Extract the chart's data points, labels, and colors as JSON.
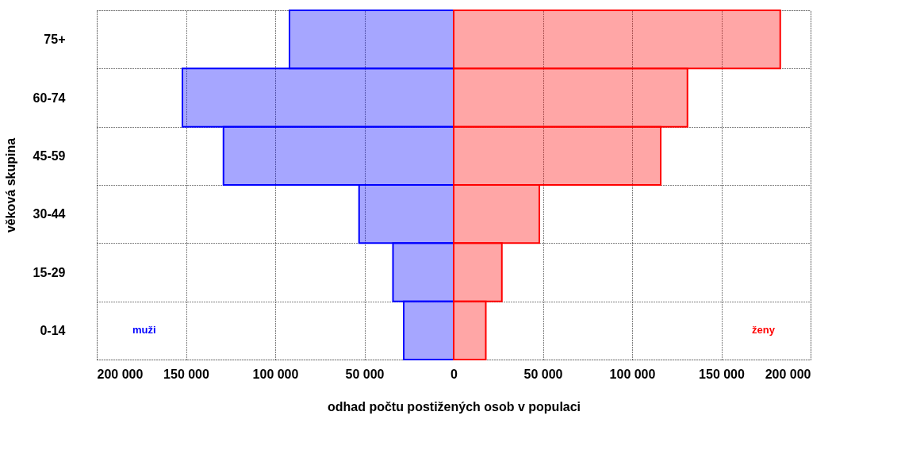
{
  "chart_data": {
    "type": "bar",
    "orientation": "horizontal",
    "xlabel": "odhad počtu postižených osob v populaci",
    "ylabel": "věková skupina",
    "categories": [
      "75+",
      "60-74",
      "45-59",
      "30-44",
      "15-29",
      "0-14"
    ],
    "series": [
      {
        "name": "muži",
        "color": "#0000ff",
        "values": [
          -92000,
          -152000,
          -129000,
          -53000,
          -34000,
          -28000
        ]
      },
      {
        "name": "ženy",
        "color": "#ff0000",
        "values": [
          183000,
          131000,
          116000,
          48000,
          27000,
          18000
        ]
      }
    ],
    "xlim": [
      -200000,
      200000
    ],
    "xticks": [
      {
        "value": -200000,
        "label": "200 000"
      },
      {
        "value": -150000,
        "label": "150 000"
      },
      {
        "value": -100000,
        "label": "100 000"
      },
      {
        "value": -50000,
        "label": "50 000"
      },
      0,
      {
        "value": 50000,
        "label": "50 000"
      },
      {
        "value": 100000,
        "label": "100 000"
      },
      {
        "value": 150000,
        "label": "150 000"
      },
      {
        "value": 200000,
        "label": "200 000"
      }
    ],
    "grid": true
  }
}
